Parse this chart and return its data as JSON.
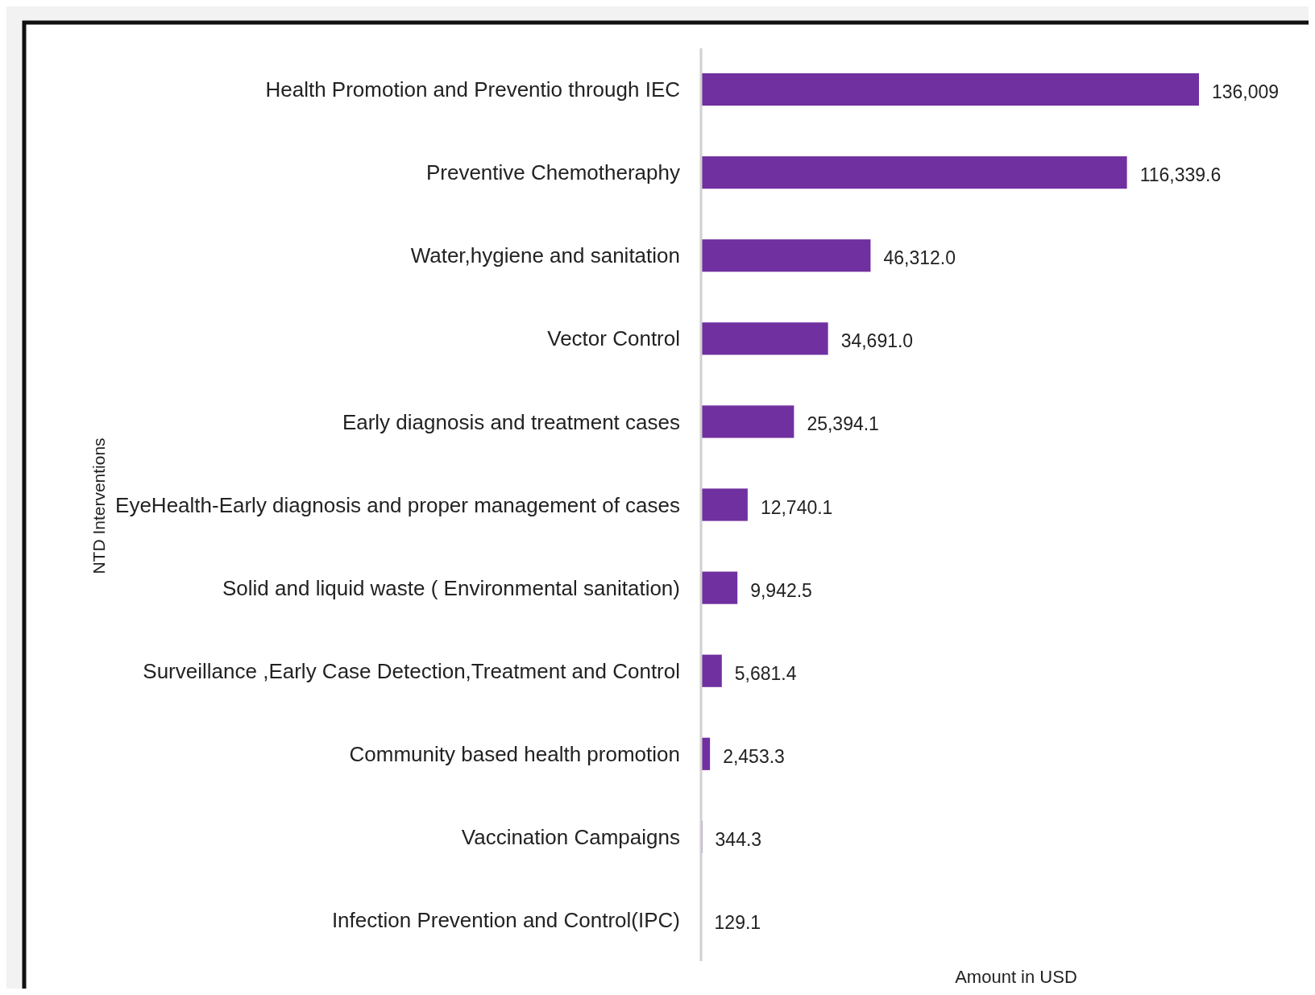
{
  "chart_data": {
    "type": "bar",
    "orientation": "horizontal",
    "xlabel": "Amount in USD",
    "ylabel": "NTD Interventions",
    "categories": [
      "Health Promotion and Preventio through IEC",
      "Preventive Chemotheraphy ",
      "Water,hygiene and sanitation",
      "Vector Control",
      "Early diagnosis and treatment cases",
      "EyeHealth-Early diagnosis and proper management of cases",
      "Solid and liquid waste ( Environmental sanitation)",
      "Surveillance ,Early Case Detection,Treatment and Control",
      "Community based health promotion",
      "Vaccination Campaigns",
      "Infection Prevention and Control(IPC)"
    ],
    "values": [
      136009,
      116339.6,
      46312.0,
      34691.0,
      25394.1,
      12740.1,
      9942.5,
      5681.4,
      2453.3,
      344.3,
      129.1
    ],
    "value_labels": [
      "136,009",
      "116,339.6",
      "46,312.0",
      "34,691.0",
      "25,394.1",
      "12,740.1",
      "9,942.5",
      "5,681.4",
      "2,453.3",
      "344.3",
      "129.1"
    ],
    "color": "#7030a0"
  }
}
